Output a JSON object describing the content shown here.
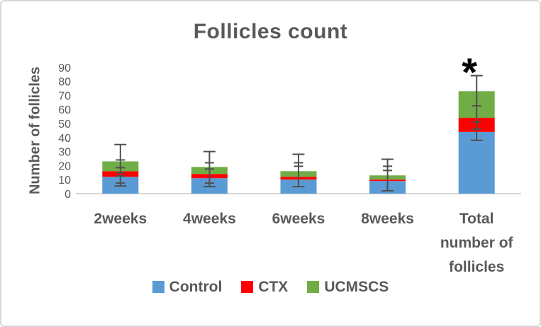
{
  "figure": {
    "title": "Follicles count",
    "y_axis_label": "Number of follicles"
  },
  "chart_data": {
    "type": "bar",
    "subtype": "stacked",
    "title": "Follicles count",
    "xlabel": "",
    "ylabel": "Number of follicles",
    "ylim": [
      0,
      90
    ],
    "y_ticks": [
      0,
      10,
      20,
      30,
      40,
      50,
      60,
      70,
      80,
      90
    ],
    "grid": false,
    "legend_position": "bottom",
    "categories": [
      "2weeks",
      "4weeks",
      "6weeks",
      "8weeks",
      "Total number of follicles"
    ],
    "category_label_lines": [
      [
        "2weeks"
      ],
      [
        "4weeks"
      ],
      [
        "6weeks"
      ],
      [
        "8weeks"
      ],
      [
        "Total",
        "number of",
        "follicles"
      ]
    ],
    "series": [
      {
        "name": "Control",
        "color": "#5B9BD5",
        "values": [
          12,
          11,
          10,
          9,
          44
        ]
      },
      {
        "name": "CTX",
        "color": "#FF0000",
        "values": [
          4,
          3,
          2,
          1,
          10
        ]
      },
      {
        "name": "UCMSCS",
        "color": "#70AD47",
        "values": [
          7,
          5,
          4,
          3,
          19
        ]
      }
    ],
    "stacked_totals": [
      23,
      19,
      16,
      13,
      73
    ],
    "error_bars": [
      {
        "category": "2weeks",
        "range": [
          5.5,
          35
        ],
        "caps": [
          35,
          24,
          18.5,
          15,
          12.5,
          7.5,
          5.5
        ]
      },
      {
        "category": "4weeks",
        "range": [
          5,
          30
        ],
        "caps": [
          30,
          22,
          17.5,
          7.5,
          5
        ]
      },
      {
        "category": "6weeks",
        "range": [
          5,
          28
        ],
        "caps": [
          28,
          22,
          19.5,
          5
        ]
      },
      {
        "category": "8weeks",
        "range": [
          2,
          24.5
        ],
        "caps": [
          24.5,
          19.5,
          16.5,
          2
        ]
      },
      {
        "category": "Total number of follicles",
        "range": [
          38,
          84
        ],
        "caps": [
          84,
          62.5,
          51,
          46,
          38
        ]
      }
    ],
    "annotations": [
      {
        "text": "*",
        "category": "Total number of follicles"
      }
    ]
  },
  "colors": {
    "text": "#595959",
    "axis_line": "#D6D6D6",
    "error_bar": "#4F4F4F",
    "background": "#FFFFFF",
    "border": "#D8D8D8"
  }
}
